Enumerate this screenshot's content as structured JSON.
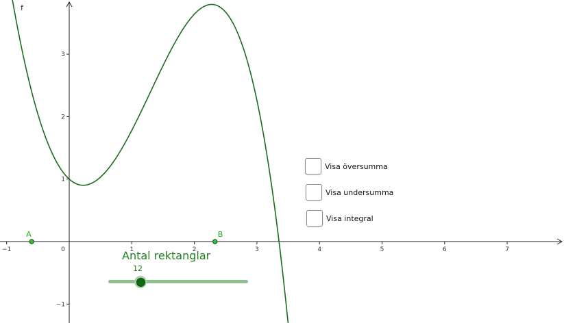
{
  "function": {
    "label": "f",
    "color": "#1e6b1e"
  },
  "axes": {
    "x_ticks": [
      "−1",
      "0",
      "1",
      "2",
      "3",
      "4",
      "5",
      "6",
      "7"
    ],
    "y_ticks": [
      "3",
      "2",
      "1",
      "−1"
    ]
  },
  "points": [
    {
      "label": "A",
      "x": -0.6,
      "y": 0
    },
    {
      "label": "B",
      "x": 2.33,
      "y": 0
    }
  ],
  "checkboxes": [
    {
      "label": "Visa översumma",
      "checked": false
    },
    {
      "label": "Visa undersumma",
      "checked": false
    },
    {
      "label": "Visa integral",
      "checked": false
    }
  ],
  "slider": {
    "caption": "Antal rektanglar",
    "value": "12",
    "fraction": 0.23
  },
  "colors": {
    "curve": "#1e6b1e",
    "point": "#22aa22",
    "accent": "#1e7f1e"
  }
}
